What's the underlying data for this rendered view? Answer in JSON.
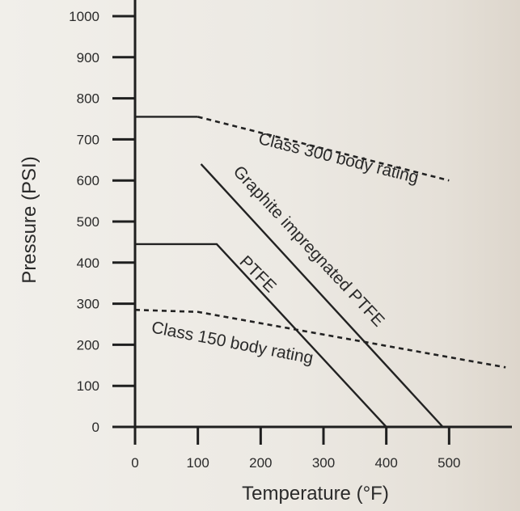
{
  "chart_data": {
    "type": "line",
    "title": "",
    "xlabel": "Temperature (°F)",
    "ylabel": "Pressure (PSI)",
    "xlim": [
      0,
      600
    ],
    "ylim": [
      0,
      1000
    ],
    "x_ticks": [
      0,
      100,
      200,
      300,
      400,
      500
    ],
    "y_ticks": [
      0,
      100,
      200,
      300,
      400,
      500,
      600,
      700,
      800,
      900,
      1000
    ],
    "grid": false,
    "legend": "none",
    "series": [
      {
        "id": "class300",
        "style": "solid-then-dashed",
        "x": [
          0,
          100,
          500
        ],
        "y": [
          755,
          755,
          600
        ]
      },
      {
        "id": "class150",
        "style": "dashed",
        "x": [
          0,
          100,
          590
        ],
        "y": [
          285,
          280,
          145
        ]
      },
      {
        "id": "ptfe",
        "style": "solid",
        "x": [
          0,
          130,
          400
        ],
        "y": [
          445,
          445,
          0
        ]
      },
      {
        "id": "graphite",
        "style": "solid",
        "x": [
          105,
          490
        ],
        "y": [
          640,
          0
        ]
      }
    ],
    "annotations": [
      {
        "id": "class300",
        "text": "Class 300 body rating",
        "x": 195,
        "y": 690,
        "angle": 14
      },
      {
        "id": "graphite",
        "text": "Graphite impregnated PTFE",
        "x": 155,
        "y": 620,
        "angle": 47
      },
      {
        "id": "ptfe",
        "text": "PTFE",
        "x": 165,
        "y": 400,
        "angle": 45
      },
      {
        "id": "class150",
        "text": "Class 150 body rating",
        "x": 25,
        "y": 230,
        "angle": 11
      }
    ],
    "colors": {
      "line": "#222222",
      "text": "#2a2a2a",
      "background": "#efece7"
    }
  }
}
